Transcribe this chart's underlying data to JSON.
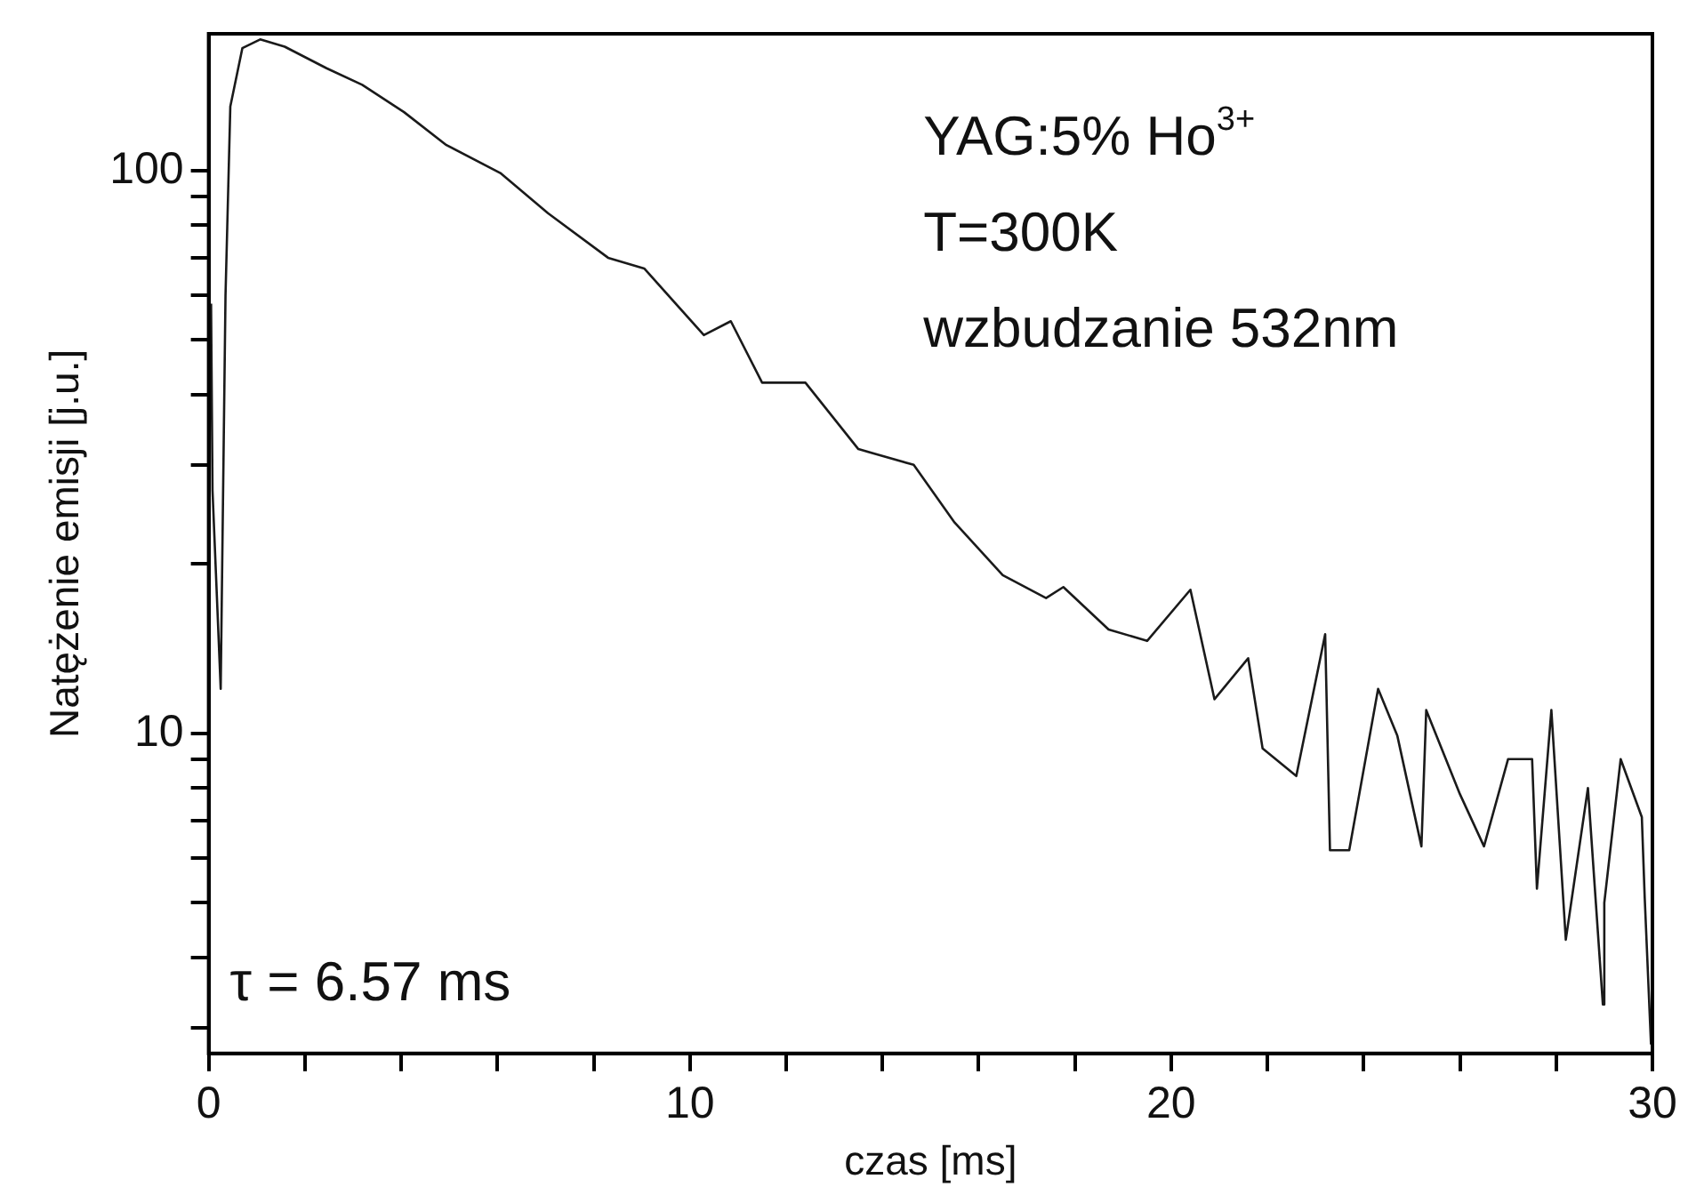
{
  "chart_data": {
    "type": "line",
    "xlabel": "czas [ms]",
    "ylabel": "Natężenie emisji [j.u.]",
    "annotations": [
      "YAG:5% Ho$^{3+}$",
      "T=300K",
      "wzbudzanie 532nm",
      "τ = 6.57 ms"
    ],
    "log": "y",
    "grid": false,
    "legend": false,
    "marker": "none",
    "line_style": "solid",
    "xlim": [
      0,
      30
    ],
    "ylim": [
      2.7,
      175
    ],
    "xticks": [
      0,
      {
        "value": 2,
        "label": null
      },
      {
        "value": 4,
        "label": null
      },
      {
        "value": 6,
        "label": null
      },
      {
        "value": 8,
        "label": null
      },
      10,
      {
        "value": 12,
        "label": null
      },
      {
        "value": 14,
        "label": null
      },
      {
        "value": 16,
        "label": null
      },
      {
        "value": 18,
        "label": null
      },
      20,
      {
        "value": 22,
        "label": null
      },
      {
        "value": 24,
        "label": null
      },
      {
        "value": 26,
        "label": null
      },
      {
        "value": 28,
        "label": null
      },
      30
    ],
    "yticks": [
      {
        "value": 3,
        "label": null
      },
      {
        "value": 4,
        "label": null
      },
      {
        "value": 5,
        "label": null
      },
      {
        "value": 6,
        "label": null
      },
      {
        "value": 7,
        "label": null
      },
      {
        "value": 8,
        "label": null
      },
      {
        "value": 9,
        "label": null
      },
      10,
      {
        "value": 20,
        "label": null
      },
      {
        "value": 30,
        "label": null
      },
      {
        "value": 40,
        "label": null
      },
      {
        "value": 50,
        "label": null
      },
      {
        "value": 60,
        "label": null
      },
      {
        "value": 70,
        "label": null
      },
      {
        "value": 80,
        "label": null
      },
      {
        "value": 90,
        "label": null
      },
      100
    ],
    "series": [
      {
        "color": "#1a1a1a",
        "x": [
          0.05,
          0.08,
          0.25,
          0.35,
          0.45,
          0.7,
          1.07,
          1.58,
          2.45,
          3.19,
          4.06,
          4.94,
          6.06,
          7.05,
          8.3,
          9.05,
          10.29,
          10.85,
          11.5,
          12.4,
          13.5,
          14.65,
          15.5,
          16.5,
          17.4,
          17.76,
          18.7,
          19.5,
          20.4,
          20.9,
          21.6,
          21.9,
          22.6,
          23.2,
          23.3,
          23.7,
          24.3,
          24.7,
          25.2,
          25.3,
          26.0,
          26.5,
          27.0,
          27.5,
          27.6,
          27.9,
          28.2,
          28.66,
          28.97,
          29.0,
          29.34,
          29.78,
          29.84,
          29.97
        ],
        "values": [
          58,
          27,
          12,
          60,
          130,
          165,
          171,
          166,
          152,
          142,
          127,
          111,
          99,
          84,
          70,
          67,
          51,
          54,
          42,
          42,
          32,
          30,
          23.7,
          19.1,
          17.4,
          18.2,
          15.3,
          14.6,
          18,
          11.5,
          13.6,
          9.4,
          8.4,
          15,
          6.2,
          6.2,
          12,
          9.9,
          6.3,
          11,
          7.8,
          6.3,
          9,
          9,
          5.3,
          11,
          4.3,
          8,
          3.3,
          5,
          9,
          7.1,
          5.1,
          2.8
        ]
      }
    ]
  }
}
